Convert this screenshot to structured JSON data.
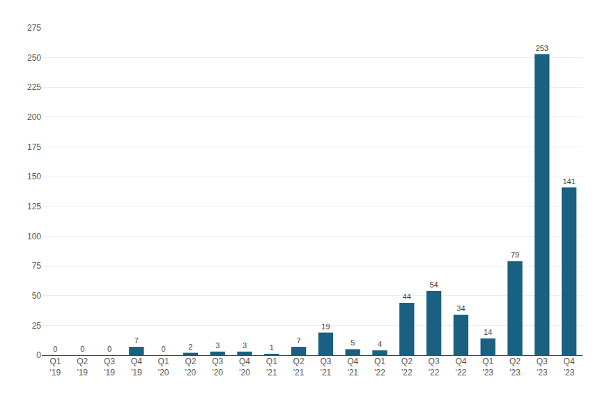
{
  "chart_data": {
    "type": "bar",
    "categories": [
      "Q1\n'19",
      "Q2\n'19",
      "Q3\n'19",
      "Q4\n'19",
      "Q1\n'20",
      "Q2\n'20",
      "Q3\n'20",
      "Q4\n'20",
      "Q1\n'21",
      "Q2\n'21",
      "Q3\n'21",
      "Q4\n'21",
      "Q1\n'22",
      "Q2\n'22",
      "Q3\n'22",
      "Q4\n'22",
      "Q1\n'23",
      "Q2\n'23",
      "Q3\n'23",
      "Q4\n'23"
    ],
    "values": [
      0,
      0,
      0,
      7,
      0,
      2,
      3,
      3,
      1,
      7,
      19,
      5,
      4,
      44,
      54,
      34,
      14,
      79,
      253,
      141
    ],
    "color": "#1a6080",
    "ylim": [
      0,
      275
    ],
    "yticks": [
      0,
      25,
      50,
      75,
      100,
      125,
      150,
      175,
      200,
      225,
      250,
      275
    ],
    "grid": true,
    "data_labels": true
  }
}
